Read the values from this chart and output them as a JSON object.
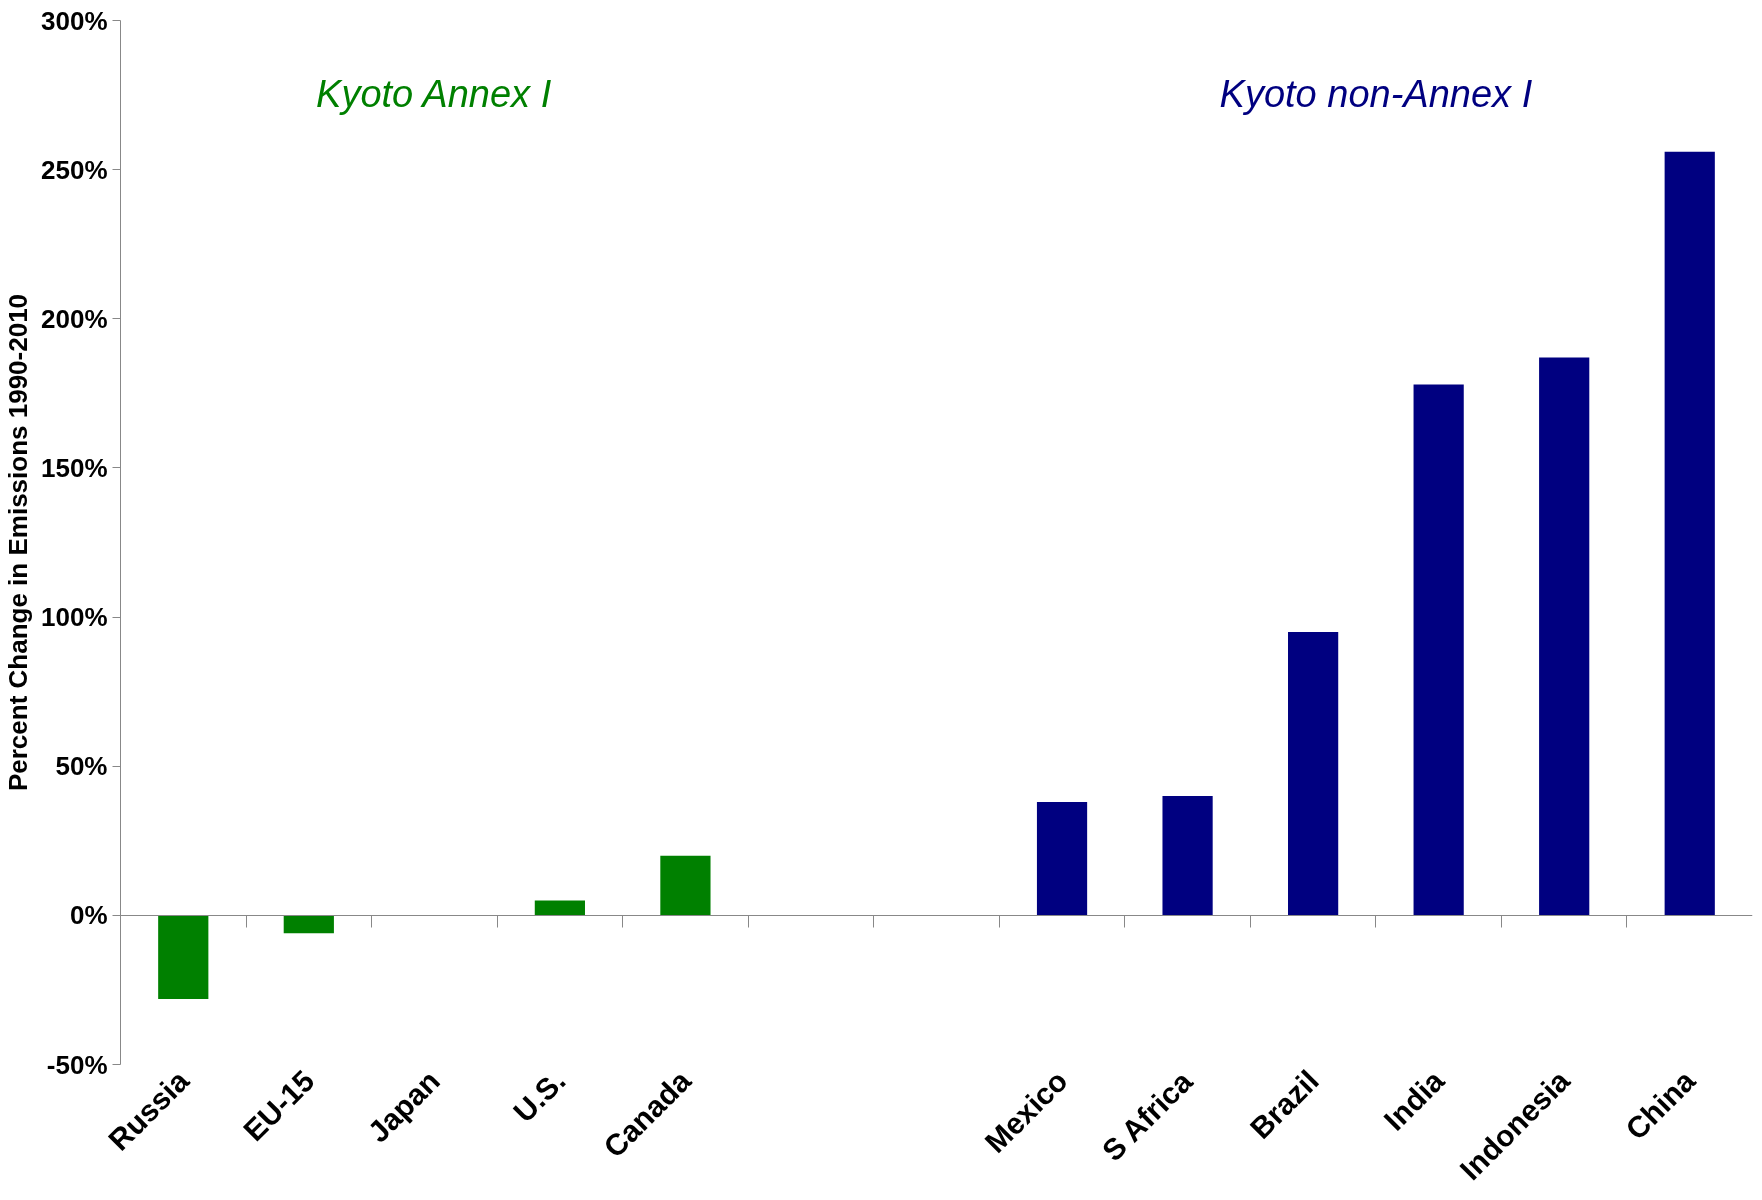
{
  "chart_data": {
    "type": "bar",
    "ylabel": "Percent Change in Emissions 1990-2010",
    "categories": [
      "Russia",
      "EU-15",
      "Japan",
      "U.S.",
      "Canada",
      null,
      null,
      "Mexico",
      "S Africa",
      "Brazil",
      "India",
      "Indonesia",
      "China"
    ],
    "values": [
      -28,
      -6,
      0,
      5,
      20,
      null,
      null,
      38,
      40,
      95,
      178,
      187,
      256
    ],
    "colors": [
      "#008000",
      "#008000",
      "#008000",
      "#008000",
      "#008000",
      "#000000",
      "#000000",
      "#000080",
      "#000080",
      "#000080",
      "#000080",
      "#000080",
      "#000080"
    ],
    "ylim": [
      -50,
      300
    ],
    "yticks": [
      {
        "value": -50,
        "label": "-50%"
      },
      {
        "value": 0,
        "label": "0%"
      },
      {
        "value": 50,
        "label": "50%"
      },
      {
        "value": 100,
        "label": "100%"
      },
      {
        "value": 150,
        "label": "150%"
      },
      {
        "value": 200,
        "label": "200%"
      },
      {
        "value": 250,
        "label": "250%"
      },
      {
        "value": 300,
        "label": "300%"
      }
    ],
    "annotations": [
      "Kyoto Annex I",
      "Kyoto non-Annex I"
    ]
  }
}
